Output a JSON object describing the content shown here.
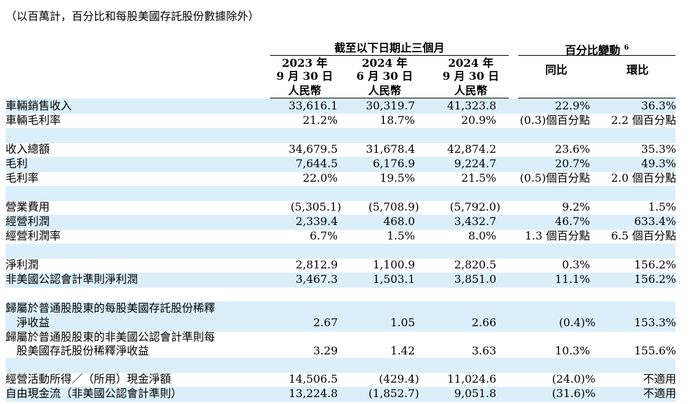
{
  "note": "（以百萬計，百分比和每股美國存託股份數據除外）",
  "header": {
    "group_title": "截至以下日期止三個月",
    "pct_title": "百分比變動",
    "pct_footnote": "6",
    "periods": [
      {
        "year": "2023 年",
        "date": "9 月 30 日",
        "currency": "人民幣"
      },
      {
        "year": "2024 年",
        "date": "6 月 30 日",
        "currency": "人民幣"
      },
      {
        "year": "2024 年",
        "date": "9 月 30 日",
        "currency": "人民幣"
      }
    ],
    "yoy": "同比",
    "qoq": "環比"
  },
  "rows": [
    {
      "label": "車輛銷售收入",
      "v1": "33,616.1",
      "v2": "30,319.7",
      "v3": "41,323.8",
      "yoy": "22.9%",
      "qoq": "36.3%"
    },
    {
      "label": "車輛毛利率",
      "v1": "21.2%",
      "v2": "18.7%",
      "v3": "20.9%",
      "yoy": "(0.3)個百分點",
      "qoq": "2.2 個百分點"
    },
    {
      "label": "收入總額",
      "v1": "34,679.5",
      "v2": "31,678.4",
      "v3": "42,874.2",
      "yoy": "23.6%",
      "qoq": "35.3%"
    },
    {
      "label": "毛利",
      "v1": "7,644.5",
      "v2": "6,176.9",
      "v3": "9,224.7",
      "yoy": "20.7%",
      "qoq": "49.3%"
    },
    {
      "label": "毛利率",
      "v1": "22.0%",
      "v2": "19.5%",
      "v3": "21.5%",
      "yoy": "(0.5)個百分點",
      "qoq": "2.0 個百分點"
    },
    {
      "label": "營業費用",
      "v1": "(5,305.1)",
      "v2": "(5,708.9)",
      "v3": "(5,792.0)",
      "yoy": "9.2%",
      "qoq": "1.5%"
    },
    {
      "label": "經營利潤",
      "v1": "2,339.4",
      "v2": "468.0",
      "v3": "3,432.7",
      "yoy": "46.7%",
      "qoq": "633.4%"
    },
    {
      "label": "經營利潤率",
      "v1": "6.7%",
      "v2": "1.5%",
      "v3": "8.0%",
      "yoy": "1.3 個百分點",
      "qoq": "6.5 個百分點"
    },
    {
      "label": "淨利潤",
      "v1": "2,812.9",
      "v2": "1,100.9",
      "v3": "2,820.5",
      "yoy": "0.3%",
      "qoq": "156.2%"
    },
    {
      "label": "非美國公認會計準則淨利潤",
      "v1": "3,467.3",
      "v2": "1,503.1",
      "v3": "3,851.0",
      "yoy": "11.1%",
      "qoq": "156.2%"
    },
    {
      "label": "歸屬於普通股股東的每股美國存託股份稀釋",
      "label2": "淨收益",
      "v1": "2.67",
      "v2": "1.05",
      "v3": "2.66",
      "yoy": "(0.4)%",
      "qoq": "153.3%"
    },
    {
      "label": "歸屬於普通股股東的非美國公認會計準則每",
      "label2": "股美國存託股份稀釋淨收益",
      "v1": "3.29",
      "v2": "1.42",
      "v3": "3.63",
      "yoy": "10.3%",
      "qoq": "155.6%"
    },
    {
      "label": "經營活動所得／（所用）現金淨額",
      "v1": "14,506.5",
      "v2": "(429.4)",
      "v3": "11,024.6",
      "yoy": "(24.0)%",
      "qoq": "不適用"
    },
    {
      "label": "自由現金流（非美國公認會計準則）",
      "v1": "13,224.8",
      "v2": "(1,852.7)",
      "v3": "9,051.8",
      "yoy": "(31.6)%",
      "qoq": "不適用"
    }
  ]
}
